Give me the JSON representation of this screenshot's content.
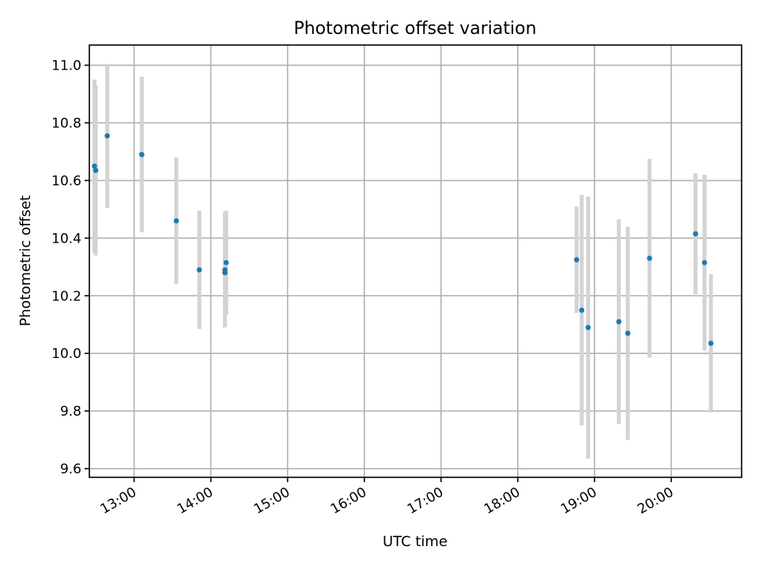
{
  "chart_data": {
    "type": "scatter",
    "title": "Photometric offset variation",
    "xlabel": "UTC time",
    "ylabel": "Photometric offset",
    "xlim": [
      "12:25",
      "20:55"
    ],
    "ylim": [
      9.57,
      11.07
    ],
    "x_ticks": [
      "13:00",
      "14:00",
      "15:00",
      "16:00",
      "17:00",
      "18:00",
      "19:00",
      "20:00"
    ],
    "y_ticks": [
      9.6,
      9.8,
      10.0,
      10.2,
      10.4,
      10.6,
      10.8,
      11.0
    ],
    "grid": true,
    "colors": {
      "point": "#1f77b4",
      "errorbar": "#d3d3d3"
    },
    "points": [
      {
        "time": "12:29",
        "y": 10.65,
        "err": 0.3
      },
      {
        "time": "12:30",
        "y": 10.635,
        "err": 0.295
      },
      {
        "time": "12:39",
        "y": 10.755,
        "err": 0.25
      },
      {
        "time": "13:06",
        "y": 10.69,
        "err": 0.27
      },
      {
        "time": "13:33",
        "y": 10.46,
        "err": 0.22
      },
      {
        "time": "13:51",
        "y": 10.29,
        "err": 0.205
      },
      {
        "time": "14:11",
        "y": 10.28,
        "err": 0.19
      },
      {
        "time": "14:11",
        "y": 10.29,
        "err": 0.2
      },
      {
        "time": "14:12",
        "y": 10.315,
        "err": 0.18
      },
      {
        "time": "18:46",
        "y": 10.325,
        "err": 0.185
      },
      {
        "time": "18:50",
        "y": 10.15,
        "err": 0.4
      },
      {
        "time": "18:55",
        "y": 10.09,
        "err": 0.455
      },
      {
        "time": "19:19",
        "y": 10.11,
        "err": 0.355
      },
      {
        "time": "19:26",
        "y": 10.07,
        "err": 0.37
      },
      {
        "time": "19:43",
        "y": 10.33,
        "err": 0.345
      },
      {
        "time": "20:19",
        "y": 10.415,
        "err": 0.21
      },
      {
        "time": "20:26",
        "y": 10.315,
        "err": 0.305
      },
      {
        "time": "20:31",
        "y": 10.035,
        "err": 0.24
      }
    ]
  }
}
